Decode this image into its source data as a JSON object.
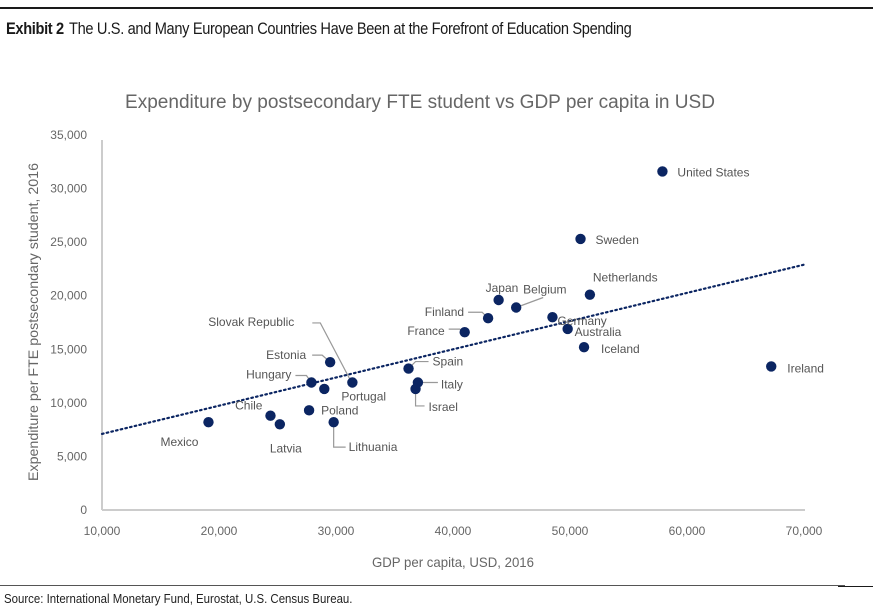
{
  "header": {
    "exhibit_label": "Exhibit 2",
    "exhibit_title": "The U.S. and Many European Countries Have Been at the Forefront of Education Spending"
  },
  "footer": {
    "source": "Source: International Monetary Fund, Eurostat, U.S. Census Bureau."
  },
  "colors": {
    "point": "#0b2562",
    "trendline": "#0b2562",
    "axis": "#cccccc",
    "text": "#666666"
  },
  "chart_data": {
    "type": "scatter",
    "title": "Expenditure by postsecondary FTE student vs GDP per capita in USD",
    "xlabel": "GDP per capita, USD, 2016",
    "ylabel": "Expenditure per FTE postsecondary student, 2016",
    "xlim": [
      10000,
      70000
    ],
    "ylim": [
      0,
      35000
    ],
    "xticks": [
      "10,000",
      "20,000",
      "30,000",
      "40,000",
      "50,000",
      "60,000",
      "70,000"
    ],
    "yticks": [
      "0",
      "5,000",
      "10,000",
      "15,000",
      "20,000",
      "25,000",
      "30,000",
      "35,000"
    ],
    "grid": false,
    "legend": "none",
    "trendline": {
      "style": "dotted",
      "x": [
        10000,
        70000
      ],
      "y": [
        7100,
        22900
      ]
    },
    "points": [
      {
        "name": "Mexico",
        "x": 19100,
        "y": 8200
      },
      {
        "name": "Chile",
        "x": 24400,
        "y": 8800
      },
      {
        "name": "Latvia",
        "x": 25200,
        "y": 8000
      },
      {
        "name": "Poland",
        "x": 27700,
        "y": 9300
      },
      {
        "name": "Lithuania",
        "x": 29800,
        "y": 8200
      },
      {
        "name": "Hungary",
        "x": 27900,
        "y": 11900
      },
      {
        "name": "Slovak Republic",
        "x": 29000,
        "y": 11300
      },
      {
        "name": "Estonia",
        "x": 29500,
        "y": 13800
      },
      {
        "name": "Portugal",
        "x": 31400,
        "y": 11900
      },
      {
        "name": "Spain",
        "x": 36200,
        "y": 13200
      },
      {
        "name": "Italy",
        "x": 37000,
        "y": 11900
      },
      {
        "name": "Israel",
        "x": 36800,
        "y": 11300
      },
      {
        "name": "France",
        "x": 41000,
        "y": 16600
      },
      {
        "name": "Finland",
        "x": 43000,
        "y": 17900
      },
      {
        "name": "Japan",
        "x": 43900,
        "y": 19600
      },
      {
        "name": "Belgium",
        "x": 45400,
        "y": 18900
      },
      {
        "name": "Germany",
        "x": 48500,
        "y": 18000
      },
      {
        "name": "Australia",
        "x": 49800,
        "y": 16900
      },
      {
        "name": "Iceland",
        "x": 51200,
        "y": 15200
      },
      {
        "name": "Netherlands",
        "x": 51700,
        "y": 20100
      },
      {
        "name": "Sweden",
        "x": 50900,
        "y": 25300
      },
      {
        "name": "United States",
        "x": 57900,
        "y": 31600
      },
      {
        "name": "Ireland",
        "x": 67200,
        "y": 13400
      }
    ]
  }
}
